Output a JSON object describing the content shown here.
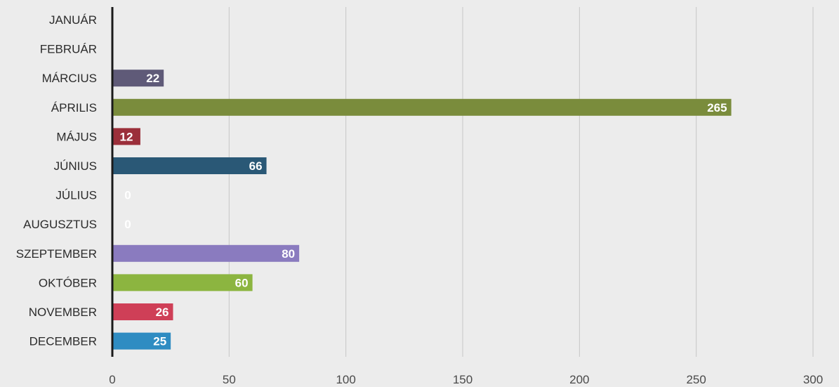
{
  "chart_data": {
    "type": "bar",
    "orientation": "horizontal",
    "title": "",
    "xlabel": "",
    "ylabel": "",
    "categories": [
      "JANUÁR",
      "FEBRUÁR",
      "MÁRCIUS",
      "ÁPRILIS",
      "MÁJUS",
      "JÚNIUS",
      "JÚLIUS",
      "AUGUSZTUS",
      "SZEPTEMBER",
      "OKTÓBER",
      "NOVEMBER",
      "DECEMBER"
    ],
    "values": [
      0,
      0,
      22,
      265,
      12,
      66,
      0,
      0,
      80,
      60,
      26,
      25
    ],
    "data_labels": [
      "",
      "",
      "22",
      "265",
      "12",
      "66",
      "0",
      "0",
      "80",
      "60",
      "26",
      "25"
    ],
    "colors": [
      "#5f5a78",
      "#5f5a78",
      "#5f5a78",
      "#7a8c3c",
      "#9b2f3a",
      "#2a5876",
      "#cccccc",
      "#aaaaaa",
      "#8a7bbf",
      "#8cb540",
      "#cf3f57",
      "#2f8cc2"
    ],
    "xlim": [
      0,
      300
    ],
    "xticks": [
      0,
      50,
      100,
      150,
      200,
      250,
      300
    ],
    "grid": true,
    "legend": "none"
  }
}
